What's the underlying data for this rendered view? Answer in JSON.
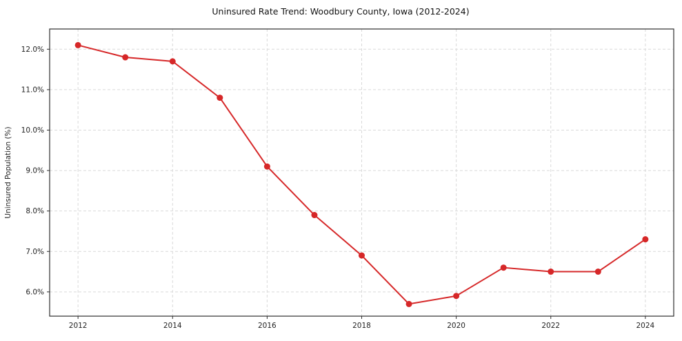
{
  "chart": {
    "title": "Uninsured Rate Trend: Woodbury County, Iowa (2012-2024)",
    "ylabel": "Uninsured Population (%)"
  },
  "chart_data": {
    "type": "line",
    "title": "Uninsured Rate Trend: Woodbury County, Iowa (2012-2024)",
    "xlabel": "",
    "ylabel": "Uninsured Population (%)",
    "x": [
      2012,
      2013,
      2014,
      2015,
      2016,
      2017,
      2018,
      2019,
      2020,
      2021,
      2022,
      2023,
      2024
    ],
    "values": [
      12.1,
      11.8,
      11.7,
      10.8,
      9.1,
      7.9,
      6.9,
      5.7,
      5.9,
      6.6,
      6.5,
      6.5,
      7.3
    ],
    "x_ticks": [
      2012,
      2014,
      2016,
      2018,
      2020,
      2022,
      2024
    ],
    "y_ticks": [
      6.0,
      7.0,
      8.0,
      9.0,
      10.0,
      11.0,
      12.0
    ],
    "xlim": [
      2011.4,
      2024.6
    ],
    "ylim": [
      5.4,
      12.5
    ],
    "grid": "dashed",
    "legend": "none",
    "line_color": "#d62728",
    "marker": "circle",
    "grid_color": "#d9d9d9",
    "axis_color": "#2b2b2b"
  }
}
